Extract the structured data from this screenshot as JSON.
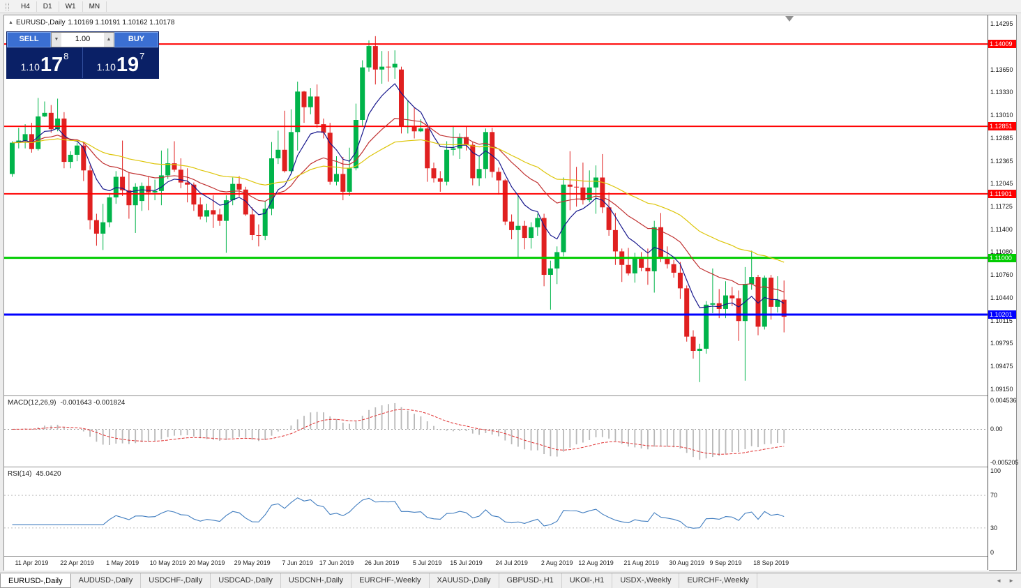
{
  "toolbar": {
    "timeframes": [
      {
        "label": "H4"
      },
      {
        "label": "D1"
      },
      {
        "label": "W1"
      },
      {
        "label": "MN"
      }
    ]
  },
  "chart_header": {
    "title": "EURUSD-,Daily",
    "ohlc_text": "1.10169 1.10191 1.10162 1.10178"
  },
  "trade_panel": {
    "sell_label": "SELL",
    "buy_label": "BUY",
    "volume": "1.00",
    "sell_price": {
      "base": "1.10",
      "pips": "17",
      "pipette": "8"
    },
    "buy_price": {
      "base": "1.10",
      "pips": "19",
      "pipette": "7"
    }
  },
  "indicators": {
    "macd": {
      "label": "MACD(12,26,9)",
      "values": "-0.001643 -0.001824",
      "axis": [
        "0.004536",
        "0.00",
        "-0.005205"
      ]
    },
    "rsi": {
      "label": "RSI(14)",
      "value": "45.0420",
      "axis": [
        "100",
        "70",
        "30",
        "0"
      ]
    }
  },
  "icons": {
    "title_marker": "▲",
    "volume_down": "▼",
    "volume_up": "▲",
    "tab_scroll_left": "◄",
    "tab_scroll_right": "►"
  },
  "tabs": {
    "items": [
      {
        "label": "EURUSD-,Daily",
        "active": true
      },
      {
        "label": "AUDUSD-,Daily",
        "active": false
      },
      {
        "label": "USDCHF-,Daily",
        "active": false
      },
      {
        "label": "USDCAD-,Daily",
        "active": false
      },
      {
        "label": "USDCNH-,Daily",
        "active": false
      },
      {
        "label": "EURCHF-,Weekly",
        "active": false
      },
      {
        "label": "XAUUSD-,Daily",
        "active": false
      },
      {
        "label": "GBPUSD-,H1",
        "active": false
      },
      {
        "label": "UKOil-,H1",
        "active": false
      },
      {
        "label": "USDX-,Weekly",
        "active": false
      },
      {
        "label": "EURCHF-,Weekly",
        "active": false
      }
    ]
  },
  "chart_data": {
    "type": "candlestick",
    "symbol": "EURUSD-",
    "timeframe": "Daily",
    "title": "EURUSD-,Daily",
    "ohlc_display": [
      1.10169,
      1.10191,
      1.10162,
      1.10178
    ],
    "ylim": [
      1.0915,
      1.14295
    ],
    "y_ticks": [
      "1.14295",
      "1.13650",
      "1.13330",
      "1.13010",
      "1.12685",
      "1.12365",
      "1.12045",
      "1.11725",
      "1.11400",
      "1.11080",
      "1.10760",
      "1.10440",
      "1.10115",
      "1.09795",
      "1.09475",
      "1.09150"
    ],
    "horizontal_levels": [
      {
        "price": 1.14009,
        "label": "1.14009",
        "color": "#ff0000",
        "width": 2
      },
      {
        "price": 1.12851,
        "label": "1.12851",
        "color": "#ff0000",
        "width": 2
      },
      {
        "price": 1.11901,
        "label": "1.11901",
        "color": "#ff0000",
        "width": 2
      },
      {
        "price": 1.11,
        "label": "1.11000",
        "color": "#00cc00",
        "width": 3
      },
      {
        "price": 1.10201,
        "label": "1.10201",
        "color": "#0000ff",
        "width": 3
      }
    ],
    "x_axis": [
      {
        "label": "11 Apr 2019",
        "index": 3
      },
      {
        "label": "22 Apr 2019",
        "index": 10
      },
      {
        "label": "1 May 2019",
        "index": 17
      },
      {
        "label": "10 May 2019",
        "index": 24
      },
      {
        "label": "20 May 2019",
        "index": 30
      },
      {
        "label": "29 May 2019",
        "index": 37
      },
      {
        "label": "7 Jun 2019",
        "index": 44
      },
      {
        "label": "17 Jun 2019",
        "index": 50
      },
      {
        "label": "26 Jun 2019",
        "index": 57
      },
      {
        "label": "5 Jul 2019",
        "index": 64
      },
      {
        "label": "15 Jul 2019",
        "index": 70
      },
      {
        "label": "24 Jul 2019",
        "index": 77
      },
      {
        "label": "2 Aug 2019",
        "index": 84
      },
      {
        "label": "12 Aug 2019",
        "index": 90
      },
      {
        "label": "21 Aug 2019",
        "index": 97
      },
      {
        "label": "30 Aug 2019",
        "index": 104
      },
      {
        "label": "9 Sep 2019",
        "index": 110
      },
      {
        "label": "18 Sep 2019",
        "index": 117
      }
    ],
    "moving_averages": [
      {
        "period": 8,
        "color": "#16168c"
      },
      {
        "period": 21,
        "color": "#c03030"
      },
      {
        "period": 45,
        "color": "#ddc508"
      }
    ],
    "macd": {
      "fast": 12,
      "slow": 26,
      "signal": 9,
      "current": [
        -0.001643,
        -0.001824
      ],
      "range": [
        -0.005205,
        0.004536
      ]
    },
    "rsi": {
      "period": 14,
      "current": 45.042,
      "levels": [
        30,
        70
      ],
      "range": [
        0,
        100
      ]
    },
    "colors": {
      "up": "#00b44a",
      "down": "#e02020",
      "macd_hist": "#b8b8b8",
      "macd_signal": "#e03030",
      "rsi": "#3f7cbf"
    },
    "candles_ohlc": [
      [
        1.1218,
        1.1264,
        1.1214,
        1.1262
      ],
      [
        1.1262,
        1.1283,
        1.1254,
        1.1265
      ],
      [
        1.1265,
        1.1288,
        1.1254,
        1.1274
      ],
      [
        1.1274,
        1.129,
        1.1248,
        1.1253
      ],
      [
        1.1253,
        1.1325,
        1.1251,
        1.1299
      ],
      [
        1.1299,
        1.132,
        1.1298,
        1.1304
      ],
      [
        1.1304,
        1.1315,
        1.1276,
        1.1281
      ],
      [
        1.1281,
        1.1324,
        1.1278,
        1.1296
      ],
      [
        1.1296,
        1.1305,
        1.1226,
        1.1235
      ],
      [
        1.1235,
        1.125,
        1.1226,
        1.1245
      ],
      [
        1.1245,
        1.1262,
        1.1236,
        1.1258
      ],
      [
        1.1258,
        1.1262,
        1.1208,
        1.1223
      ],
      [
        1.1223,
        1.123,
        1.114,
        1.1153
      ],
      [
        1.1153,
        1.1162,
        1.1117,
        1.1134
      ],
      [
        1.1134,
        1.1176,
        1.1111,
        1.115
      ],
      [
        1.115,
        1.1191,
        1.1143,
        1.1185
      ],
      [
        1.1185,
        1.1222,
        1.1176,
        1.1214
      ],
      [
        1.1214,
        1.1265,
        1.1187,
        1.1195
      ],
      [
        1.1195,
        1.122,
        1.1155,
        1.1174
      ],
      [
        1.1174,
        1.1205,
        1.1135,
        1.12
      ],
      [
        1.118,
        1.1206,
        1.1166,
        1.1201
      ],
      [
        1.1201,
        1.1215,
        1.1167,
        1.1192
      ],
      [
        1.1192,
        1.121,
        1.1181,
        1.1194
      ],
      [
        1.1194,
        1.1251,
        1.1174,
        1.1216
      ],
      [
        1.1216,
        1.1254,
        1.1211,
        1.1233
      ],
      [
        1.1233,
        1.1264,
        1.1221,
        1.1224
      ],
      [
        1.1224,
        1.124,
        1.1198,
        1.1206
      ],
      [
        1.1206,
        1.1226,
        1.1178,
        1.1203
      ],
      [
        1.1203,
        1.1206,
        1.1166,
        1.1175
      ],
      [
        1.1175,
        1.1185,
        1.1154,
        1.1158
      ],
      [
        1.1158,
        1.1176,
        1.115,
        1.1167
      ],
      [
        1.1167,
        1.1188,
        1.1142,
        1.1161
      ],
      [
        1.1161,
        1.1169,
        1.1145,
        1.1152
      ],
      [
        1.1152,
        1.1188,
        1.1107,
        1.1181
      ],
      [
        1.1181,
        1.1213,
        1.1174,
        1.1204
      ],
      [
        1.1204,
        1.1215,
        1.1186,
        1.1196
      ],
      [
        1.1196,
        1.12,
        1.1159,
        1.1161
      ],
      [
        1.1161,
        1.1171,
        1.1125,
        1.1132
      ],
      [
        1.1132,
        1.1147,
        1.1116,
        1.1131
      ],
      [
        1.1131,
        1.118,
        1.1125,
        1.1169
      ],
      [
        1.1169,
        1.1263,
        1.116,
        1.124
      ],
      [
        1.124,
        1.1279,
        1.1232,
        1.1252
      ],
      [
        1.1252,
        1.1307,
        1.122,
        1.1222
      ],
      [
        1.1222,
        1.1309,
        1.1219,
        1.1277
      ],
      [
        1.1277,
        1.1348,
        1.1251,
        1.1334
      ],
      [
        1.1334,
        1.1335,
        1.129,
        1.1312
      ],
      [
        1.1312,
        1.1339,
        1.1302,
        1.1327
      ],
      [
        1.1327,
        1.1344,
        1.1283,
        1.1288
      ],
      [
        1.1288,
        1.1296,
        1.1268,
        1.1276
      ],
      [
        1.1276,
        1.129,
        1.1203,
        1.1207
      ],
      [
        1.1207,
        1.1243,
        1.1202,
        1.1218
      ],
      [
        1.1218,
        1.1242,
        1.1181,
        1.1193
      ],
      [
        1.1193,
        1.1255,
        1.1187,
        1.1226
      ],
      [
        1.1226,
        1.1317,
        1.1223,
        1.1294
      ],
      [
        1.1294,
        1.1378,
        1.1285,
        1.1368
      ],
      [
        1.1368,
        1.1406,
        1.1362,
        1.1398
      ],
      [
        1.1398,
        1.1412,
        1.1344,
        1.1365
      ],
      [
        1.1365,
        1.1391,
        1.1345,
        1.1369
      ],
      [
        1.1369,
        1.1391,
        1.1348,
        1.1368
      ],
      [
        1.1368,
        1.1392,
        1.1352,
        1.1373
      ],
      [
        1.1365,
        1.1369,
        1.1275,
        1.1285
      ],
      [
        1.1285,
        1.1322,
        1.1275,
        1.1285
      ],
      [
        1.1285,
        1.1312,
        1.1268,
        1.1278
      ],
      [
        1.1278,
        1.1295,
        1.1277,
        1.1282
      ],
      [
        1.1282,
        1.1288,
        1.1207,
        1.1226
      ],
      [
        1.1226,
        1.1234,
        1.1206,
        1.1212
      ],
      [
        1.1212,
        1.1222,
        1.1193,
        1.1207
      ],
      [
        1.1207,
        1.1264,
        1.1202,
        1.1252
      ],
      [
        1.1252,
        1.1286,
        1.1244,
        1.1254
      ],
      [
        1.1254,
        1.1275,
        1.1239,
        1.127
      ],
      [
        1.127,
        1.1285,
        1.1251,
        1.1259
      ],
      [
        1.1259,
        1.1263,
        1.1202,
        1.1212
      ],
      [
        1.1212,
        1.1243,
        1.1201,
        1.1225
      ],
      [
        1.1225,
        1.1282,
        1.1212,
        1.1277
      ],
      [
        1.1277,
        1.1283,
        1.1213,
        1.1221
      ],
      [
        1.1221,
        1.1227,
        1.1189,
        1.1209
      ],
      [
        1.1209,
        1.1211,
        1.1146,
        1.1151
      ],
      [
        1.1151,
        1.1161,
        1.1126,
        1.1139
      ],
      [
        1.1139,
        1.1187,
        1.1101,
        1.1145
      ],
      [
        1.1145,
        1.1152,
        1.1112,
        1.1128
      ],
      [
        1.1128,
        1.115,
        1.1113,
        1.1143
      ],
      [
        1.1143,
        1.1162,
        1.1131,
        1.1156
      ],
      [
        1.1156,
        1.1162,
        1.106,
        1.1076
      ],
      [
        1.1076,
        1.1096,
        1.1027,
        1.1085
      ],
      [
        1.1085,
        1.1116,
        1.1063,
        1.1108
      ],
      [
        1.1108,
        1.1213,
        1.1102,
        1.1203
      ],
      [
        1.1203,
        1.125,
        1.1167,
        1.12
      ],
      [
        1.12,
        1.1228,
        1.1172,
        1.1199
      ],
      [
        1.1199,
        1.1234,
        1.1175,
        1.1181
      ],
      [
        1.1181,
        1.1223,
        1.1178,
        1.1199
      ],
      [
        1.1199,
        1.123,
        1.1162,
        1.1213
      ],
      [
        1.1213,
        1.1246,
        1.1163,
        1.1171
      ],
      [
        1.1171,
        1.1192,
        1.1131,
        1.1139
      ],
      [
        1.1139,
        1.1163,
        1.109,
        1.1109
      ],
      [
        1.1109,
        1.1113,
        1.1066,
        1.109
      ],
      [
        1.109,
        1.1114,
        1.1075,
        1.1078
      ],
      [
        1.1078,
        1.1107,
        1.1065,
        1.1099
      ],
      [
        1.1099,
        1.1108,
        1.1081,
        1.1086
      ],
      [
        1.1086,
        1.1113,
        1.1062,
        1.1081
      ],
      [
        1.1081,
        1.1152,
        1.1051,
        1.1143
      ],
      [
        1.1143,
        1.1163,
        1.1094,
        1.1101
      ],
      [
        1.1101,
        1.1116,
        1.1085,
        1.1091
      ],
      [
        1.1091,
        1.1097,
        1.1072,
        1.1079
      ],
      [
        1.1079,
        1.1094,
        1.1042,
        1.1057
      ],
      [
        1.1057,
        1.1061,
        1.0982,
        1.0989
      ],
      [
        1.0989,
        1.0998,
        1.0958,
        1.0969
      ],
      [
        1.0969,
        1.0979,
        1.0925,
        1.0972
      ],
      [
        1.0972,
        1.1039,
        1.0965,
        1.1034
      ],
      [
        1.1034,
        1.1085,
        1.1022,
        1.1036
      ],
      [
        1.1036,
        1.1056,
        1.1015,
        1.1028
      ],
      [
        1.1028,
        1.1067,
        1.1015,
        1.1047
      ],
      [
        1.1047,
        1.1059,
        1.1032,
        1.1043
      ],
      [
        1.1043,
        1.1054,
        1.0983,
        1.1011
      ],
      [
        1.1011,
        1.1087,
        1.0927,
        1.1063
      ],
      [
        1.1063,
        1.111,
        1.1055,
        1.1073
      ],
      [
        1.1073,
        1.1076,
        1.0991,
        1.1003
      ],
      [
        1.1003,
        1.1075,
        1.0999,
        1.1072
      ],
      [
        1.1072,
        1.1076,
        1.1013,
        1.1031
      ],
      [
        1.1031,
        1.1074,
        1.1023,
        1.1041
      ],
      [
        1.1041,
        1.1068,
        1.0995,
        1.1017
      ]
    ]
  }
}
